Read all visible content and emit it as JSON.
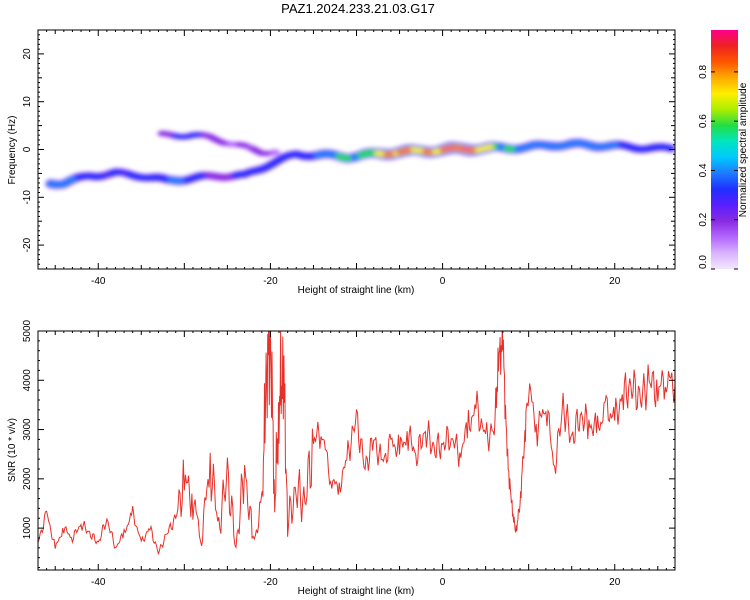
{
  "title": "PAZ1.2024.233.21.03.G17",
  "colormap": [
    "#f2e6ff",
    "#d9b3ff",
    "#b366ff",
    "#8a2be2",
    "#5a1fff",
    "#1f2fff",
    "#1e7bff",
    "#00c8ff",
    "#00e6c0",
    "#22dd44",
    "#aaee00",
    "#ffee00",
    "#ffaa00",
    "#ff5500",
    "#ee2222",
    "#ff0088"
  ],
  "line_color": "#e8302a",
  "chart_data": [
    {
      "type": "heatmap",
      "xlabel": "Height of straight line (km)",
      "ylabel": "Frequency (Hz)",
      "xlim": [
        -47,
        27
      ],
      "ylim": [
        -25,
        25
      ],
      "x_ticks": [
        -40,
        -20,
        0,
        20
      ],
      "y_ticks": [
        -20,
        -10,
        0,
        10,
        20
      ],
      "colorbar": {
        "label": "Normalized spectral amplitude",
        "range": [
          0,
          0.97
        ],
        "ticks": [
          0.0,
          0.2,
          0.4,
          0.6,
          0.8
        ]
      },
      "ridge": {
        "x": [
          -44,
          -41,
          -38,
          -35,
          -32,
          -29,
          -26,
          -23,
          -20,
          -17,
          -14,
          -11,
          -8,
          -5,
          -2,
          1,
          4,
          7,
          10,
          13,
          16,
          19,
          22,
          25
        ],
        "y": [
          -7.0,
          -5.5,
          -5.0,
          -5.5,
          -6.5,
          -6.0,
          -5.5,
          -5.5,
          -3.0,
          -1.0,
          -1.2,
          -1.5,
          -1.0,
          -0.5,
          -0.3,
          0.0,
          0.2,
          0.3,
          0.5,
          1.0,
          1.0,
          0.8,
          0.5,
          0.2
        ],
        "amplitude": [
          0.45,
          0.35,
          0.25,
          0.3,
          0.45,
          0.3,
          0.25,
          0.3,
          0.3,
          0.35,
          0.45,
          0.6,
          0.75,
          0.85,
          0.9,
          0.97,
          0.9,
          0.6,
          0.4,
          0.55,
          0.5,
          0.45,
          0.35,
          0.3
        ]
      },
      "branch": {
        "x": [
          -31,
          -29,
          -27,
          -25,
          -23,
          -21
        ],
        "y": [
          3.0,
          3.0,
          2.5,
          1.5,
          0.5,
          -0.5
        ],
        "amplitude": [
          0.25,
          0.3,
          0.2,
          0.15,
          0.15,
          0.15
        ]
      }
    },
    {
      "type": "line",
      "xlabel": "Height of straight line (km)",
      "ylabel": "SNR (10 * v/v)",
      "xlim": [
        -47,
        27
      ],
      "ylim": [
        150,
        5000
      ],
      "x_ticks": [
        -40,
        -20,
        0,
        20
      ],
      "y_ticks": [
        1000,
        2000,
        3000,
        4000,
        5000
      ],
      "x": [
        -47,
        -46,
        -45,
        -44,
        -43,
        -42,
        -41,
        -40,
        -39,
        -38,
        -37,
        -36,
        -35,
        -34,
        -33,
        -32,
        -31,
        -30,
        -29,
        -28,
        -27,
        -26,
        -25,
        -24,
        -23,
        -22,
        -21,
        -20.5,
        -20,
        -19.5,
        -19,
        -18.5,
        -18,
        -17,
        -16,
        -15,
        -14,
        -13,
        -12,
        -11,
        -10,
        -9,
        -8,
        -7,
        -6,
        -5,
        -4,
        -3,
        -2,
        -1,
        0,
        1,
        2,
        3,
        4,
        5,
        6,
        6.5,
        7,
        7.5,
        8,
        8.5,
        9,
        9.5,
        10,
        11,
        12,
        13,
        14,
        15,
        16,
        17,
        18,
        19,
        20,
        21,
        22,
        23,
        24,
        25,
        26,
        27
      ],
      "y": [
        700,
        1300,
        600,
        1000,
        800,
        1100,
        900,
        700,
        1200,
        600,
        900,
        1300,
        700,
        1000,
        500,
        900,
        1200,
        2000,
        1600,
        800,
        2400,
        1000,
        2100,
        600,
        2200,
        700,
        1400,
        4000,
        5000,
        1500,
        3500,
        4400,
        1100,
        1800,
        1500,
        2800,
        3000,
        2000,
        1800,
        2500,
        3200,
        2200,
        2800,
        2300,
        2700,
        2600,
        2900,
        2500,
        3000,
        2600,
        2700,
        2900,
        2500,
        3100,
        3400,
        2800,
        3000,
        4400,
        4800,
        2500,
        1500,
        900,
        1500,
        2800,
        3900,
        3000,
        3600,
        2200,
        3500,
        2800,
        3300,
        3100,
        3000,
        3400,
        3200,
        3700,
        3900,
        3600,
        4000,
        3800,
        4100,
        3900
      ]
    }
  ]
}
